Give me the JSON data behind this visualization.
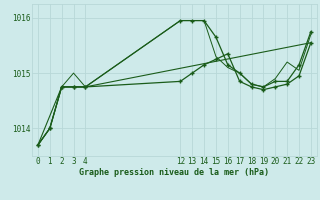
{
  "bg_color": "#ceeaea",
  "grid_color": "#b8d8d8",
  "line_color": "#1a5c1a",
  "series1_x": [
    0,
    1,
    2,
    3,
    4,
    12,
    13,
    14,
    15,
    16,
    17,
    18,
    19,
    20,
    21,
    22,
    23
  ],
  "series1_y": [
    1013.7,
    1014.0,
    1014.75,
    1014.75,
    1014.75,
    1015.95,
    1015.95,
    1015.95,
    1015.65,
    1015.15,
    1015.0,
    1014.8,
    1014.75,
    1014.85,
    1014.85,
    1015.15,
    1015.75
  ],
  "series2_x": [
    0,
    1,
    2,
    3,
    4,
    12,
    13,
    14,
    15,
    16,
    17,
    18,
    19,
    20,
    21,
    22,
    23
  ],
  "series2_y": [
    1013.7,
    1014.0,
    1014.75,
    1014.75,
    1014.75,
    1014.85,
    1015.0,
    1015.15,
    1015.25,
    1015.35,
    1014.85,
    1014.75,
    1014.7,
    1014.75,
    1014.8,
    1014.95,
    1015.55
  ],
  "series3_x": [
    0,
    2,
    4,
    23
  ],
  "series3_y": [
    1013.7,
    1014.75,
    1014.75,
    1015.55
  ],
  "series4_x": [
    0,
    1,
    2,
    3,
    4,
    12,
    13,
    14,
    15,
    16,
    17,
    18,
    19,
    20,
    21,
    22,
    23
  ],
  "series4_y": [
    1013.7,
    1014.0,
    1014.75,
    1015.0,
    1014.75,
    1015.95,
    1015.95,
    1015.95,
    1015.3,
    1015.1,
    1015.0,
    1014.8,
    1014.75,
    1014.9,
    1015.2,
    1015.05,
    1015.7
  ],
  "xtick_labels": [
    "0",
    "1",
    "2",
    "3",
    "4",
    "12",
    "13",
    "14",
    "15",
    "16",
    "17",
    "18",
    "19",
    "20",
    "21",
    "22",
    "23"
  ],
  "xtick_positions": [
    0,
    1,
    2,
    3,
    4,
    12,
    13,
    14,
    15,
    16,
    17,
    18,
    19,
    20,
    21,
    22,
    23
  ],
  "ytick_positions": [
    1014,
    1015,
    1016
  ],
  "ytick_labels": [
    "1014",
    "1015",
    "1016"
  ],
  "ylim": [
    1013.5,
    1016.25
  ],
  "xlim": [
    -0.5,
    23.5
  ],
  "xlabel": "Graphe pression niveau de la mer (hPa)",
  "tick_fontsize": 5.5
}
